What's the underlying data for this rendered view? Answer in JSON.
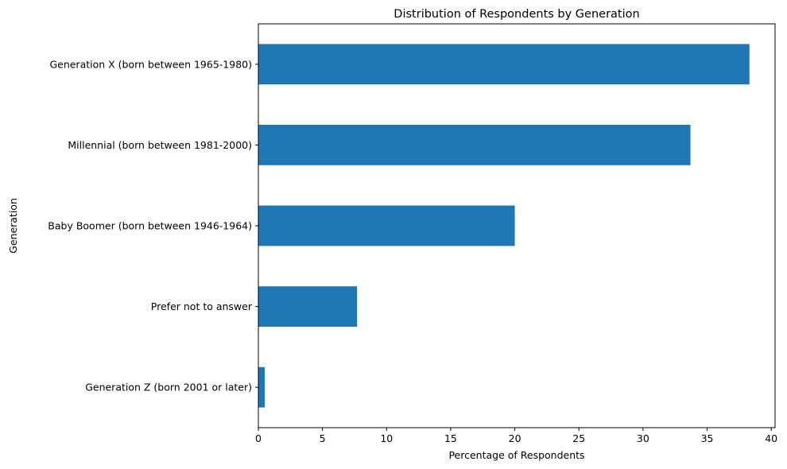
{
  "chart_data": {
    "type": "bar",
    "orientation": "horizontal",
    "title": "Distribution of Respondents by Generation",
    "xlabel": "Percentage of Respondents",
    "ylabel": "Generation",
    "categories": [
      "Generation X (born between 1965-1980)",
      "Millennial (born between 1981-2000)",
      "Baby Boomer (born between 1946-1964)",
      "Prefer not to answer",
      "Generation Z (born 2001 or later)"
    ],
    "values": [
      38.3,
      33.7,
      20.0,
      7.7,
      0.5
    ],
    "xlim": [
      0,
      40.3
    ],
    "xticks": [
      0,
      5,
      10,
      15,
      20,
      25,
      30,
      35,
      40
    ],
    "bar_color": "#1f77b4",
    "grid": false,
    "legend": "none"
  }
}
